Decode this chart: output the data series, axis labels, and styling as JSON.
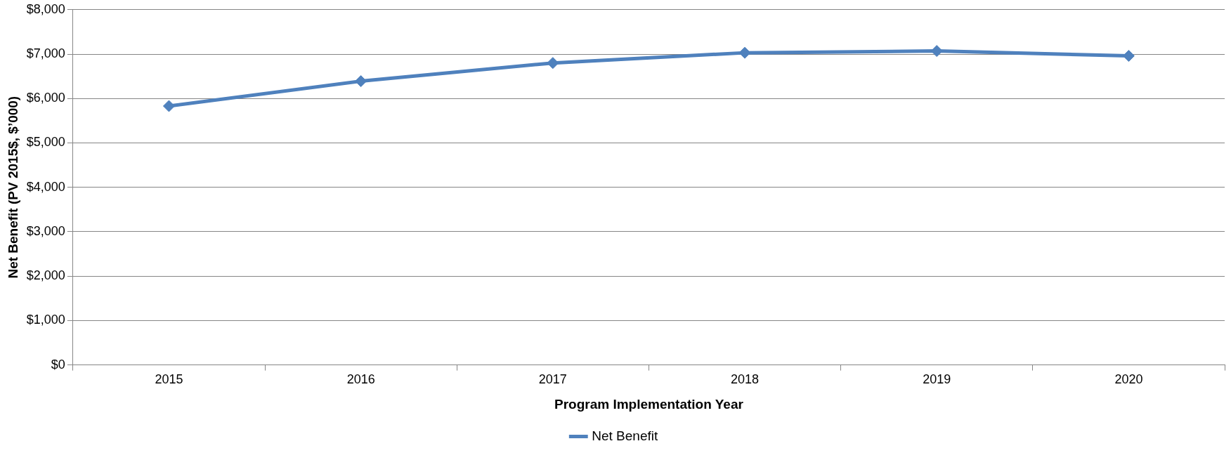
{
  "chart_data": {
    "type": "line",
    "xlabel": "Program Implementation Year",
    "ylabel": "Net Benefit (PV 2015$, $’000)",
    "categories": [
      "2015",
      "2016",
      "2017",
      "2018",
      "2019",
      "2020"
    ],
    "series": [
      {
        "name": "Net Benefit",
        "color": "#4f81bd",
        "values": [
          5830,
          6390,
          6800,
          7030,
          7070,
          6960
        ]
      }
    ],
    "ylim": [
      0,
      8000
    ],
    "yticks": [
      {
        "value": 0,
        "label": "$0"
      },
      {
        "value": 1000,
        "label": "$1,000"
      },
      {
        "value": 2000,
        "label": "$2,000"
      },
      {
        "value": 3000,
        "label": "$3,000"
      },
      {
        "value": 4000,
        "label": "$4,000"
      },
      {
        "value": 5000,
        "label": "$5,000"
      },
      {
        "value": 6000,
        "label": "$6,000"
      },
      {
        "value": 7000,
        "label": "$7,000"
      },
      {
        "value": 8000,
        "label": "$8,000"
      }
    ],
    "grid": "y",
    "legend": "bottom",
    "marker": "diamond",
    "line_style": "solid"
  }
}
